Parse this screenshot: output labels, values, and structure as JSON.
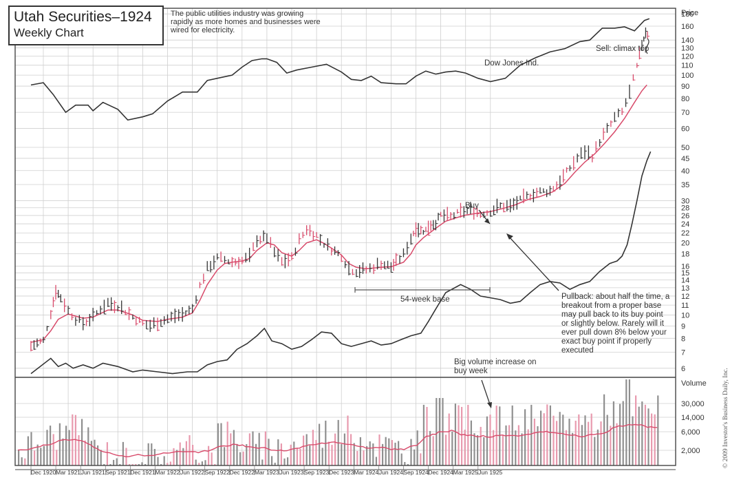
{
  "header": {
    "title": "Utah Securities–1924",
    "subtitle": "Weekly Chart",
    "caption": "The public utilities industry was growing rapidly as more homes and businesses were wired for electricity."
  },
  "annotations": {
    "dow": "Dow Jones Ind.",
    "sell": "Sell: climax top",
    "buy": "Buy",
    "base": "54-week base",
    "pullback": "Pullback: about half the time, a breakout from a proper base may pull back to its buy point or slightly below. Rarely will it ever pull down 8% below your exact buy point if properly executed",
    "volume_note": "Big volume increase on buy week"
  },
  "copyright": "© 2009 Investor's Business Daily, Inc.",
  "colors": {
    "price": "#333333",
    "ma": "#d84a6a",
    "grid": "#cfcfcf",
    "volume_gray": "#8f8f8f",
    "volume_pink": "#e89aae"
  },
  "chart_data": {
    "type": "line",
    "title": "Utah Securities–1924",
    "subtitle": "Weekly Chart",
    "price_axis": {
      "label": "Price",
      "scale": "log",
      "range": [
        5.5,
        190
      ],
      "ticks": [
        180,
        160,
        140,
        130,
        120,
        110,
        100,
        90,
        80,
        70,
        60,
        50,
        45,
        40,
        35,
        30,
        28,
        26,
        24,
        22,
        20,
        18,
        16,
        15,
        14,
        13,
        12,
        11,
        10,
        9,
        8,
        7,
        6
      ]
    },
    "volume_axis": {
      "label": "Volume",
      "ticks": [
        "30,000",
        "14,000",
        "6,000",
        "2,000"
      ]
    },
    "x_labels": [
      "Dec 1920",
      "Mar 1921",
      "Jun 1921",
      "Sep 1921",
      "Dec 1921",
      "Mar 1922",
      "Jun 1922",
      "Sep 1922",
      "Dec 1922",
      "Mar 1923",
      "Jun 1923",
      "Sep 1923",
      "Dec 1923",
      "Mar 1924",
      "Jun 1924",
      "Sep 1924",
      "Dec 1924",
      "Mar 1925",
      "Jun 1925"
    ],
    "series": [
      {
        "name": "Utah Securities",
        "style": "bars",
        "points": [
          [
            -0.5,
            7.4
          ],
          [
            0.0,
            7.8
          ],
          [
            0.3,
            10.2
          ],
          [
            0.5,
            12.6
          ],
          [
            0.7,
            11.8
          ],
          [
            1.0,
            10.4
          ],
          [
            1.3,
            9.6
          ],
          [
            1.6,
            9.2
          ],
          [
            2.0,
            9.8
          ],
          [
            2.3,
            10.6
          ],
          [
            2.6,
            11.2
          ],
          [
            3.0,
            10.9
          ],
          [
            3.3,
            10.4
          ],
          [
            3.6,
            9.8
          ],
          [
            4.0,
            9.2
          ],
          [
            4.3,
            9.0
          ],
          [
            4.6,
            9.3
          ],
          [
            5.0,
            9.6
          ],
          [
            5.3,
            9.9
          ],
          [
            5.6,
            10.0
          ],
          [
            6.0,
            10.6
          ],
          [
            6.3,
            13.2
          ],
          [
            6.6,
            15.6
          ],
          [
            7.0,
            17.2
          ],
          [
            7.3,
            17.0
          ],
          [
            7.6,
            16.6
          ],
          [
            8.0,
            16.8
          ],
          [
            8.3,
            17.4
          ],
          [
            8.6,
            20.6
          ],
          [
            9.0,
            21.0
          ],
          [
            9.3,
            18.2
          ],
          [
            9.6,
            16.6
          ],
          [
            10.0,
            17.2
          ],
          [
            10.3,
            20.4
          ],
          [
            10.6,
            22.8
          ],
          [
            11.0,
            21.4
          ],
          [
            11.3,
            19.8
          ],
          [
            11.6,
            18.8
          ],
          [
            12.0,
            17.6
          ],
          [
            12.3,
            15.6
          ],
          [
            12.6,
            15.2
          ],
          [
            13.0,
            15.4
          ],
          [
            13.3,
            15.8
          ],
          [
            13.6,
            16.4
          ],
          [
            14.0,
            15.8
          ],
          [
            14.2,
            16.6
          ],
          [
            14.5,
            17.8
          ],
          [
            14.8,
            20.8
          ],
          [
            15.0,
            23.2
          ],
          [
            15.2,
            22.4
          ],
          [
            15.4,
            22.6
          ],
          [
            15.6,
            23.8
          ],
          [
            15.8,
            24.2
          ],
          [
            16.0,
            26.0
          ],
          [
            16.4,
            25.6
          ],
          [
            16.8,
            26.8
          ],
          [
            17.2,
            27.4
          ],
          [
            17.6,
            26.4
          ],
          [
            18.0,
            27.0
          ],
          [
            18.4,
            28.4
          ],
          [
            18.8,
            28.2
          ],
          [
            19.2,
            30.0
          ],
          [
            19.6,
            31.6
          ],
          [
            20.0,
            32.6
          ],
          [
            20.4,
            32.8
          ],
          [
            20.8,
            36.0
          ],
          [
            21.2,
            41.0
          ],
          [
            21.5,
            45.0
          ],
          [
            21.8,
            48.0
          ],
          [
            22.1,
            46.0
          ],
          [
            22.4,
            53.0
          ],
          [
            22.7,
            59.0
          ],
          [
            23.0,
            66.0
          ],
          [
            23.3,
            70.0
          ],
          [
            23.6,
            84.0
          ],
          [
            23.9,
            108.0
          ],
          [
            24.1,
            134.0
          ],
          [
            24.25,
            152.0
          ],
          [
            24.4,
            145.0
          ]
        ]
      },
      {
        "name": "Moving average",
        "points": [
          [
            -0.5,
            7.7
          ],
          [
            0.0,
            7.9
          ],
          [
            0.3,
            8.6
          ],
          [
            0.6,
            9.6
          ],
          [
            1.0,
            10.1
          ],
          [
            1.3,
            9.9
          ],
          [
            1.6,
            9.7
          ],
          [
            2.0,
            9.8
          ],
          [
            2.6,
            10.5
          ],
          [
            3.0,
            10.5
          ],
          [
            3.6,
            10.0
          ],
          [
            4.0,
            9.5
          ],
          [
            4.6,
            9.4
          ],
          [
            5.0,
            9.6
          ],
          [
            5.6,
            9.8
          ],
          [
            6.0,
            10.2
          ],
          [
            6.3,
            11.5
          ],
          [
            6.6,
            13.4
          ],
          [
            7.0,
            15.4
          ],
          [
            7.3,
            16.4
          ],
          [
            7.6,
            16.6
          ],
          [
            8.0,
            16.8
          ],
          [
            8.3,
            17.2
          ],
          [
            8.6,
            18.6
          ],
          [
            9.0,
            20.0
          ],
          [
            9.3,
            19.6
          ],
          [
            9.6,
            18.2
          ],
          [
            10.0,
            17.6
          ],
          [
            10.3,
            18.6
          ],
          [
            10.6,
            20.0
          ],
          [
            11.0,
            20.6
          ],
          [
            11.3,
            19.9
          ],
          [
            11.6,
            19.0
          ],
          [
            12.0,
            17.8
          ],
          [
            12.3,
            16.4
          ],
          [
            12.6,
            15.8
          ],
          [
            13.0,
            15.6
          ],
          [
            13.6,
            15.8
          ],
          [
            14.0,
            15.9
          ],
          [
            14.5,
            16.6
          ],
          [
            14.8,
            18.0
          ],
          [
            15.0,
            19.6
          ],
          [
            15.3,
            21.0
          ],
          [
            15.6,
            22.2
          ],
          [
            15.9,
            23.4
          ],
          [
            16.2,
            24.6
          ],
          [
            16.6,
            25.4
          ],
          [
            17.0,
            26.1
          ],
          [
            17.5,
            26.6
          ],
          [
            18.0,
            27.0
          ],
          [
            18.5,
            27.8
          ],
          [
            19.0,
            28.8
          ],
          [
            19.5,
            30.3
          ],
          [
            20.0,
            31.2
          ],
          [
            20.5,
            32.6
          ],
          [
            21.0,
            35.4
          ],
          [
            21.4,
            39.4
          ],
          [
            21.8,
            43.4
          ],
          [
            22.2,
            47.0
          ],
          [
            22.6,
            52.0
          ],
          [
            23.0,
            58.0
          ],
          [
            23.4,
            66.0
          ],
          [
            23.8,
            77.0
          ],
          [
            24.1,
            86.0
          ],
          [
            24.3,
            91.0
          ]
        ]
      },
      {
        "name": "Dow Jones Ind.",
        "points": [
          [
            -0.5,
            91
          ],
          [
            0.0,
            93
          ],
          [
            0.4,
            83
          ],
          [
            0.9,
            70
          ],
          [
            1.3,
            75
          ],
          [
            1.8,
            75
          ],
          [
            2.0,
            71
          ],
          [
            2.4,
            77
          ],
          [
            3.0,
            72
          ],
          [
            3.4,
            65
          ],
          [
            4.0,
            67
          ],
          [
            4.4,
            69
          ],
          [
            5.0,
            78
          ],
          [
            5.6,
            85
          ],
          [
            6.2,
            85
          ],
          [
            6.6,
            95
          ],
          [
            7.2,
            98
          ],
          [
            7.6,
            100
          ],
          [
            8.0,
            108
          ],
          [
            8.4,
            115
          ],
          [
            8.8,
            117
          ],
          [
            9.0,
            117
          ],
          [
            9.4,
            113
          ],
          [
            9.8,
            102
          ],
          [
            10.2,
            105
          ],
          [
            10.8,
            108
          ],
          [
            11.4,
            111
          ],
          [
            12.0,
            103
          ],
          [
            12.4,
            96
          ],
          [
            12.8,
            95
          ],
          [
            13.2,
            99
          ],
          [
            13.6,
            93
          ],
          [
            14.2,
            92
          ],
          [
            14.6,
            92
          ],
          [
            15.0,
            99
          ],
          [
            15.4,
            104
          ],
          [
            15.8,
            101
          ],
          [
            16.2,
            103
          ],
          [
            16.6,
            104
          ],
          [
            17.0,
            102
          ],
          [
            17.5,
            97
          ],
          [
            18.0,
            94
          ],
          [
            18.6,
            97
          ],
          [
            19.2,
            110
          ],
          [
            19.8,
            118
          ],
          [
            20.4,
            125
          ],
          [
            21.0,
            129
          ],
          [
            21.6,
            138
          ],
          [
            22.0,
            140
          ],
          [
            22.5,
            157
          ],
          [
            23.0,
            157
          ],
          [
            23.4,
            159
          ],
          [
            23.8,
            153
          ],
          [
            24.2,
            169
          ],
          [
            24.4,
            172
          ]
        ]
      },
      {
        "name": "Relative strength",
        "points": [
          [
            -0.5,
            5.7
          ],
          [
            0.3,
            6.6
          ],
          [
            0.6,
            6.1
          ],
          [
            0.9,
            6.3
          ],
          [
            1.2,
            6.0
          ],
          [
            1.6,
            6.2
          ],
          [
            2.0,
            6.0
          ],
          [
            2.4,
            6.3
          ],
          [
            3.0,
            6.1
          ],
          [
            3.6,
            5.8
          ],
          [
            4.0,
            5.9
          ],
          [
            4.6,
            5.8
          ],
          [
            5.2,
            5.7
          ],
          [
            5.8,
            5.8
          ],
          [
            6.2,
            5.8
          ],
          [
            6.6,
            6.2
          ],
          [
            7.0,
            6.4
          ],
          [
            7.4,
            6.5
          ],
          [
            7.8,
            7.2
          ],
          [
            8.2,
            7.6
          ],
          [
            8.6,
            8.2
          ],
          [
            8.9,
            8.8
          ],
          [
            9.2,
            7.8
          ],
          [
            9.6,
            7.6
          ],
          [
            10.0,
            7.2
          ],
          [
            10.4,
            7.4
          ],
          [
            10.8,
            7.9
          ],
          [
            11.2,
            8.5
          ],
          [
            11.6,
            8.4
          ],
          [
            12.0,
            7.6
          ],
          [
            12.4,
            7.4
          ],
          [
            12.8,
            7.6
          ],
          [
            13.2,
            7.8
          ],
          [
            13.6,
            7.5
          ],
          [
            14.0,
            7.6
          ],
          [
            14.4,
            7.9
          ],
          [
            14.8,
            8.2
          ],
          [
            15.2,
            8.4
          ],
          [
            15.5,
            9.4
          ],
          [
            15.8,
            10.6
          ],
          [
            16.2,
            12.4
          ],
          [
            16.8,
            13.4
          ],
          [
            17.2,
            12.8
          ],
          [
            17.6,
            12.0
          ],
          [
            18.0,
            11.8
          ],
          [
            18.4,
            11.6
          ],
          [
            18.8,
            11.2
          ],
          [
            19.2,
            11.4
          ],
          [
            19.6,
            12.4
          ],
          [
            20.0,
            13.4
          ],
          [
            20.4,
            13.8
          ],
          [
            20.8,
            13.6
          ],
          [
            21.2,
            12.8
          ],
          [
            21.6,
            13.4
          ],
          [
            22.0,
            13.8
          ],
          [
            22.4,
            15.2
          ],
          [
            22.8,
            16.4
          ],
          [
            23.1,
            16.8
          ],
          [
            23.3,
            17.6
          ],
          [
            23.5,
            19.6
          ],
          [
            23.7,
            24.0
          ],
          [
            23.9,
            30.0
          ],
          [
            24.1,
            38.0
          ],
          [
            24.3,
            44.0
          ],
          [
            24.45,
            48.0
          ]
        ]
      }
    ]
  }
}
